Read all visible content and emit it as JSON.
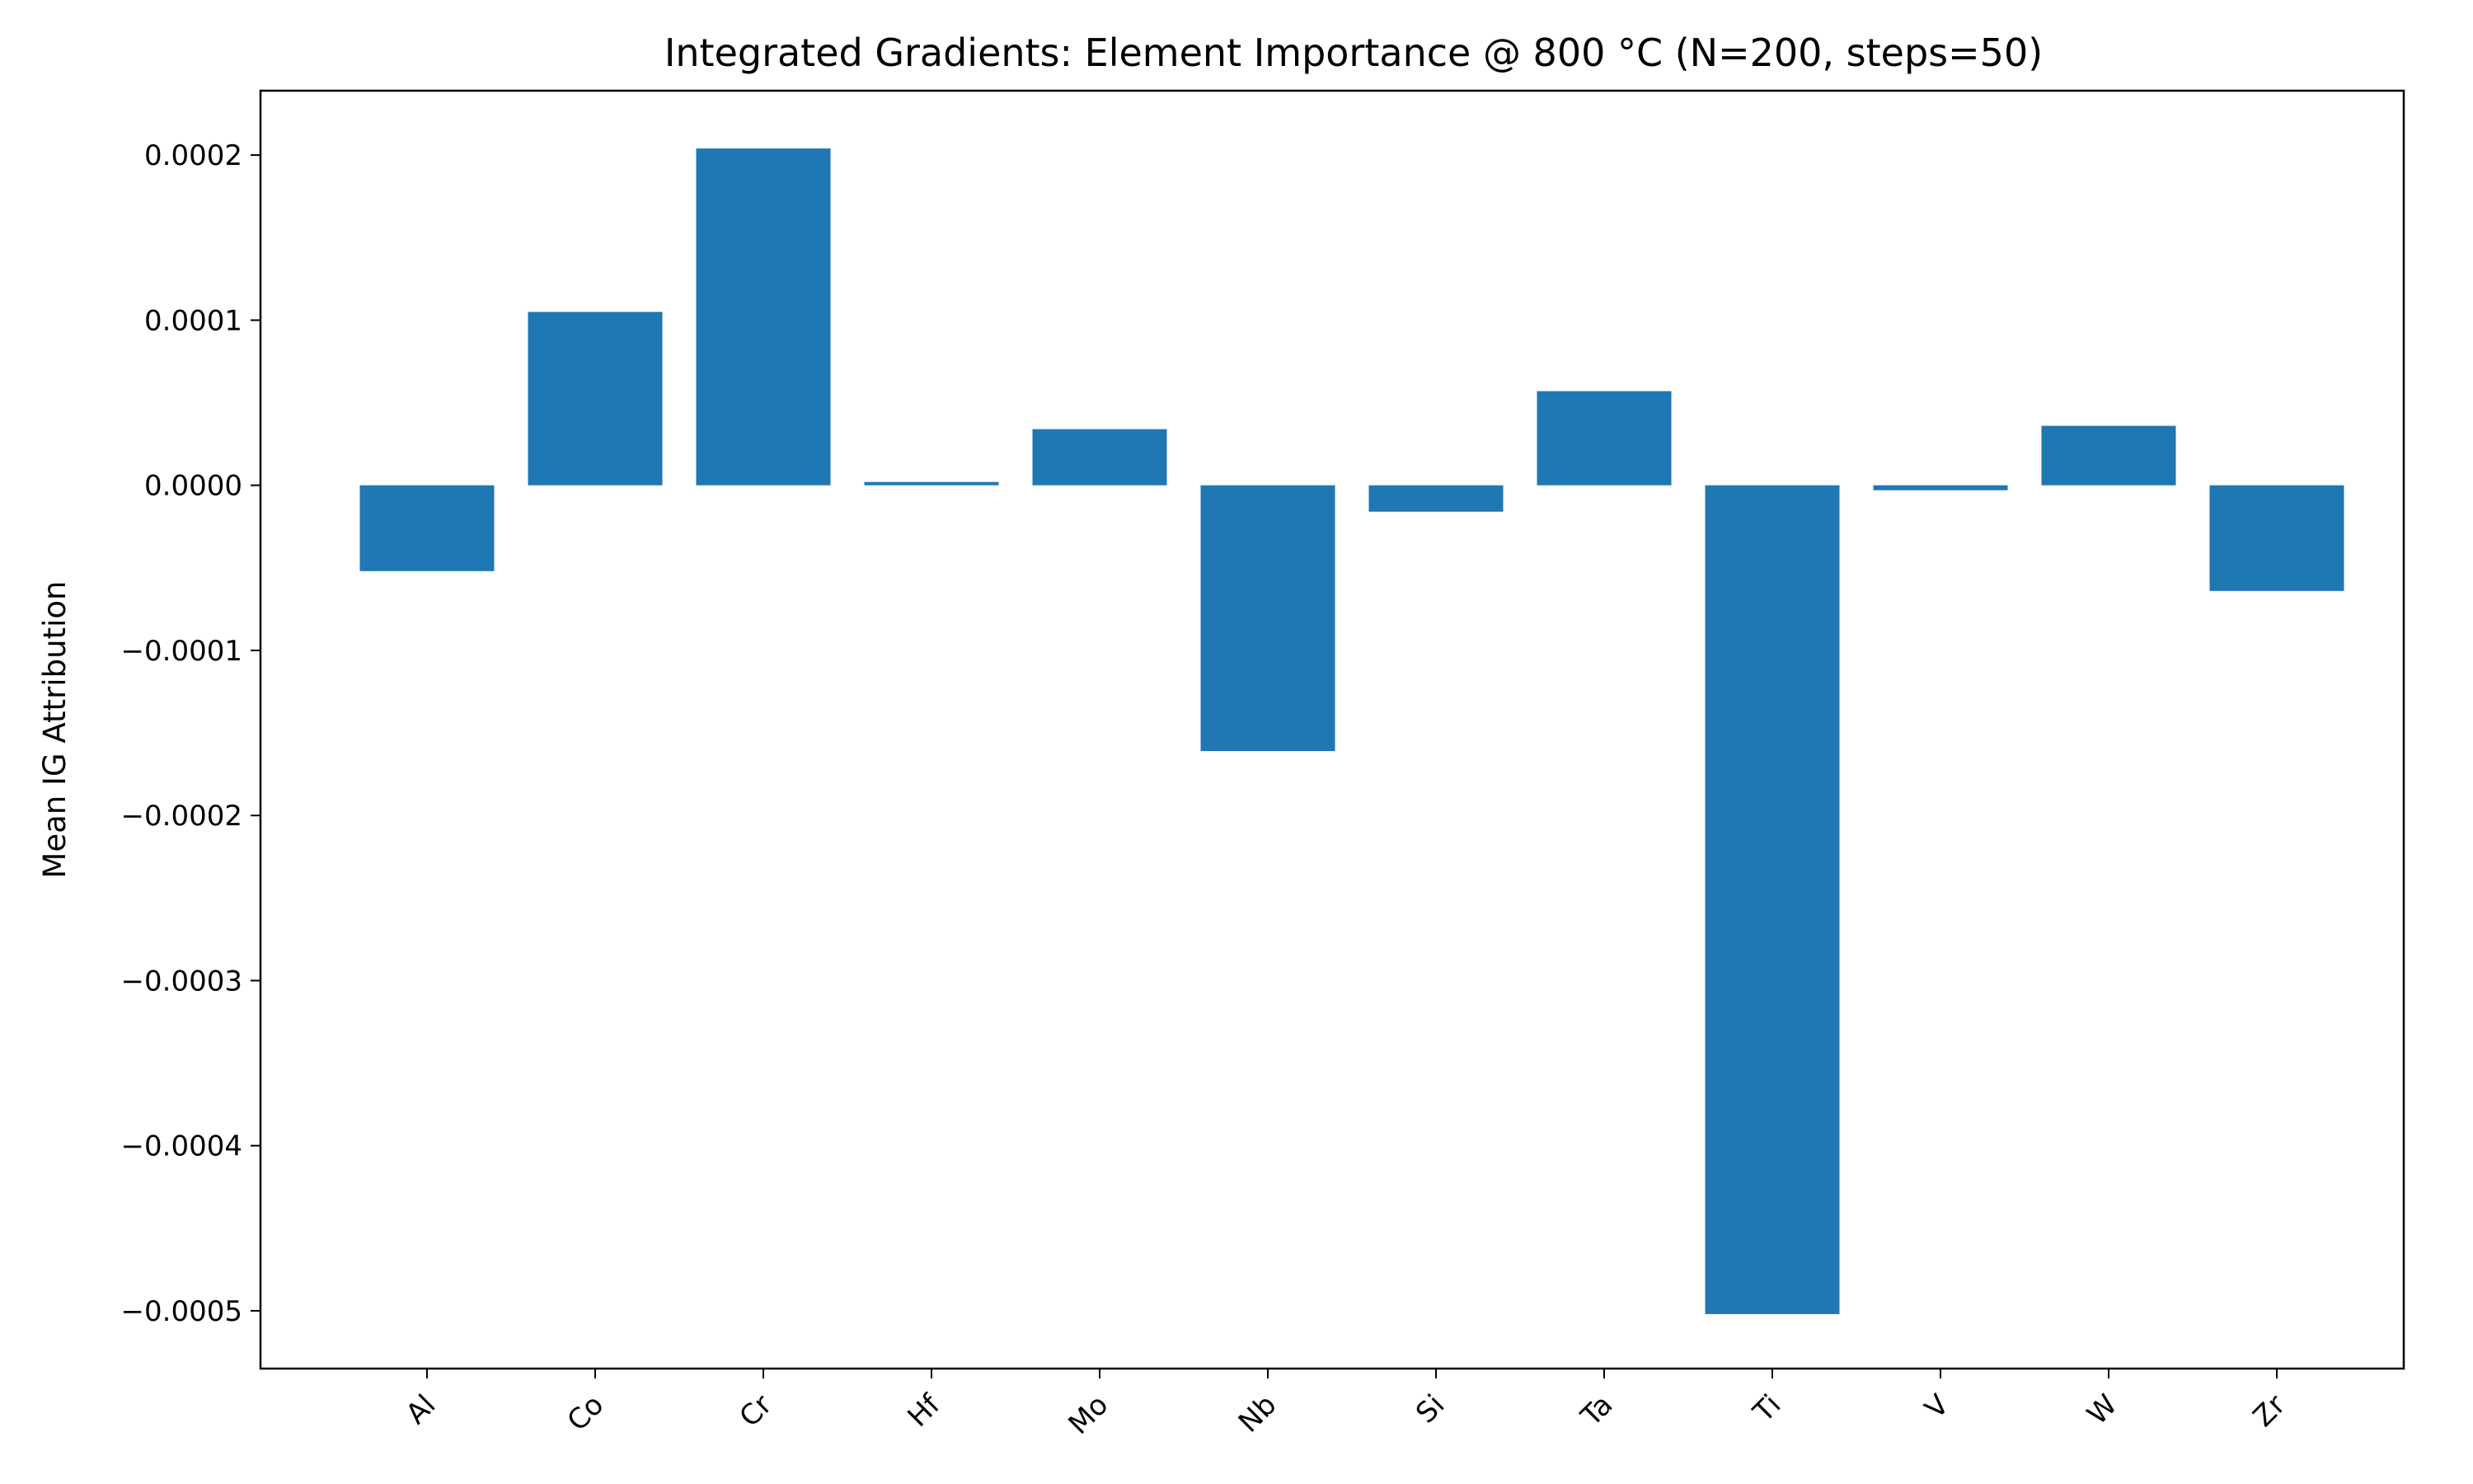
{
  "chart_data": {
    "type": "bar",
    "title": "Integrated Gradients: Element Importance @ 800 °C (N=200, steps=50)",
    "xlabel": "",
    "ylabel": "Mean IG Attribution",
    "categories": [
      "Al",
      "Co",
      "Cr",
      "Hf",
      "Mo",
      "Nb",
      "Si",
      "Ta",
      "Ti",
      "V",
      "W",
      "Zr"
    ],
    "values": [
      -5.2e-05,
      0.000105,
      0.000204,
      2e-06,
      3.4e-05,
      -0.000161,
      -1.6e-05,
      5.7e-05,
      -0.000502,
      -3e-06,
      3.6e-05,
      -6.4e-05
    ],
    "ylim": [
      -0.000535,
      0.000239
    ],
    "yticks": [
      0.0002,
      0.0001,
      0.0,
      -0.0001,
      -0.0002,
      -0.0003,
      -0.0004,
      -0.0005
    ],
    "ytick_labels": [
      "0.0002",
      "0.0001",
      "0.0000",
      "−0.0001",
      "−0.0002",
      "−0.0003",
      "−0.0004",
      "−0.0005"
    ],
    "bar_color": "#1f77b4",
    "grid": false,
    "legend": "none"
  }
}
